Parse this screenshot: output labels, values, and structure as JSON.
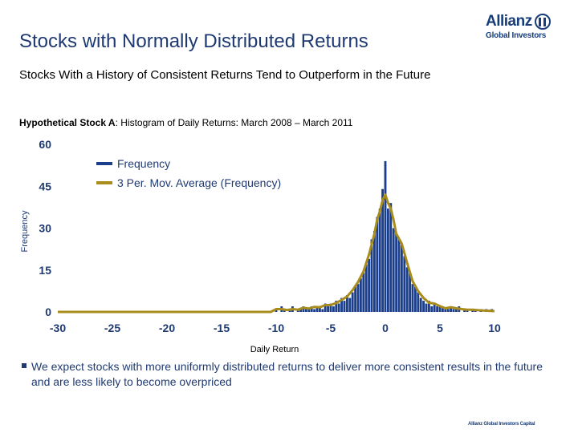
{
  "slide": {
    "title": "Stocks with Normally Distributed Returns",
    "subtitle": "Stocks With a History of Consistent Returns Tend to Outperform in the Future",
    "figure_caption_bold": "Hypothetical Stock A",
    "figure_caption_rest": ": Histogram of Daily Returns: March 2008 – March 2011",
    "bullet": "We expect stocks with more uniformly distributed returns to deliver more consistent results in the future and are less likely to become overpriced",
    "footer": "Allianz Global Investors Capital"
  },
  "logo": {
    "name": "Allianz",
    "subtitle": "Global Investors"
  },
  "colors": {
    "title": "#1f3a73",
    "bar": "#1b3f8b",
    "moving_average": "#a88c1c"
  },
  "chart_data": {
    "type": "bar",
    "title": "",
    "xlabel": "Daily Return",
    "ylabel": "Frequency",
    "xlim": [
      -30,
      10
    ],
    "ylim": [
      0,
      60
    ],
    "xticks": [
      -30,
      -25,
      -20,
      -15,
      -10,
      -5,
      0,
      5,
      10
    ],
    "yticks": [
      0,
      15,
      30,
      45,
      60
    ],
    "bin_width": 0.25,
    "series": [
      {
        "name": "Frequency",
        "kind": "bar",
        "x": [
          -10.0,
          -9.75,
          -9.5,
          -9.25,
          -9.0,
          -8.75,
          -8.5,
          -8.25,
          -8.0,
          -7.75,
          -7.5,
          -7.25,
          -7.0,
          -6.75,
          -6.5,
          -6.25,
          -6.0,
          -5.75,
          -5.5,
          -5.25,
          -5.0,
          -4.75,
          -4.5,
          -4.25,
          -4.0,
          -3.75,
          -3.5,
          -3.25,
          -3.0,
          -2.75,
          -2.5,
          -2.25,
          -2.0,
          -1.75,
          -1.5,
          -1.25,
          -1.0,
          -0.75,
          -0.5,
          -0.25,
          0.0,
          0.25,
          0.5,
          0.75,
          1.0,
          1.25,
          1.5,
          1.75,
          2.0,
          2.25,
          2.5,
          2.75,
          3.0,
          3.25,
          3.5,
          3.75,
          4.0,
          4.25,
          4.5,
          4.75,
          5.0,
          5.25,
          5.5,
          5.75,
          6.0,
          6.25,
          6.5,
          6.75,
          7.0,
          7.25,
          7.5,
          7.75,
          8.0,
          8.25,
          8.5,
          8.75,
          9.0,
          9.25,
          9.5,
          9.75
        ],
        "values": [
          1,
          0,
          2,
          1,
          0,
          1,
          2,
          0,
          1,
          1,
          2,
          1,
          1,
          2,
          1,
          2,
          2,
          1,
          3,
          2,
          3,
          2,
          4,
          3,
          5,
          4,
          6,
          5,
          7,
          9,
          10,
          12,
          14,
          17,
          19,
          26,
          29,
          34,
          37,
          44,
          54,
          37,
          39,
          30,
          28,
          26,
          24,
          20,
          16,
          14,
          10,
          9,
          7,
          5,
          4,
          3,
          4,
          2,
          3,
          2,
          2,
          2,
          1,
          1,
          2,
          1,
          1,
          2,
          0,
          1,
          1,
          0,
          1,
          1,
          0,
          1,
          0,
          1,
          0,
          1
        ]
      },
      {
        "name": "3 Per. Mov. Average (Frequency)",
        "kind": "line",
        "x": [
          -30.0,
          -25.0,
          -20.0,
          -15.0,
          -10.5,
          -10.0,
          -9.5,
          -9.0,
          -8.5,
          -8.0,
          -7.5,
          -7.0,
          -6.5,
          -6.0,
          -5.5,
          -5.0,
          -4.5,
          -4.0,
          -3.5,
          -3.0,
          -2.5,
          -2.0,
          -1.5,
          -1.0,
          -0.75,
          -0.5,
          -0.25,
          0.0,
          0.25,
          0.5,
          0.75,
          1.0,
          1.5,
          2.0,
          2.5,
          3.0,
          3.5,
          4.0,
          4.5,
          5.0,
          5.5,
          6.0,
          6.5,
          7.0,
          7.5,
          8.0,
          8.5,
          9.0,
          9.5,
          10.0
        ],
        "values": [
          0,
          0,
          0,
          0,
          0,
          1,
          1,
          0.7,
          1,
          0.8,
          1.5,
          1.2,
          1.8,
          1.7,
          2.4,
          2.5,
          3.2,
          4.3,
          5.5,
          7.8,
          10.7,
          14.5,
          20.5,
          28,
          33,
          36,
          40,
          42,
          39,
          37,
          33,
          28,
          24.5,
          17.5,
          11,
          7.5,
          5,
          3.3,
          3,
          2.1,
          1.3,
          1.7,
          1.3,
          1,
          0.8,
          0.8,
          0.6,
          0.5,
          0.4,
          0.3
        ]
      }
    ],
    "legend": [
      "Frequency",
      "3 Per. Mov. Average (Frequency)"
    ],
    "legend_position": "top-left",
    "grid": false
  }
}
